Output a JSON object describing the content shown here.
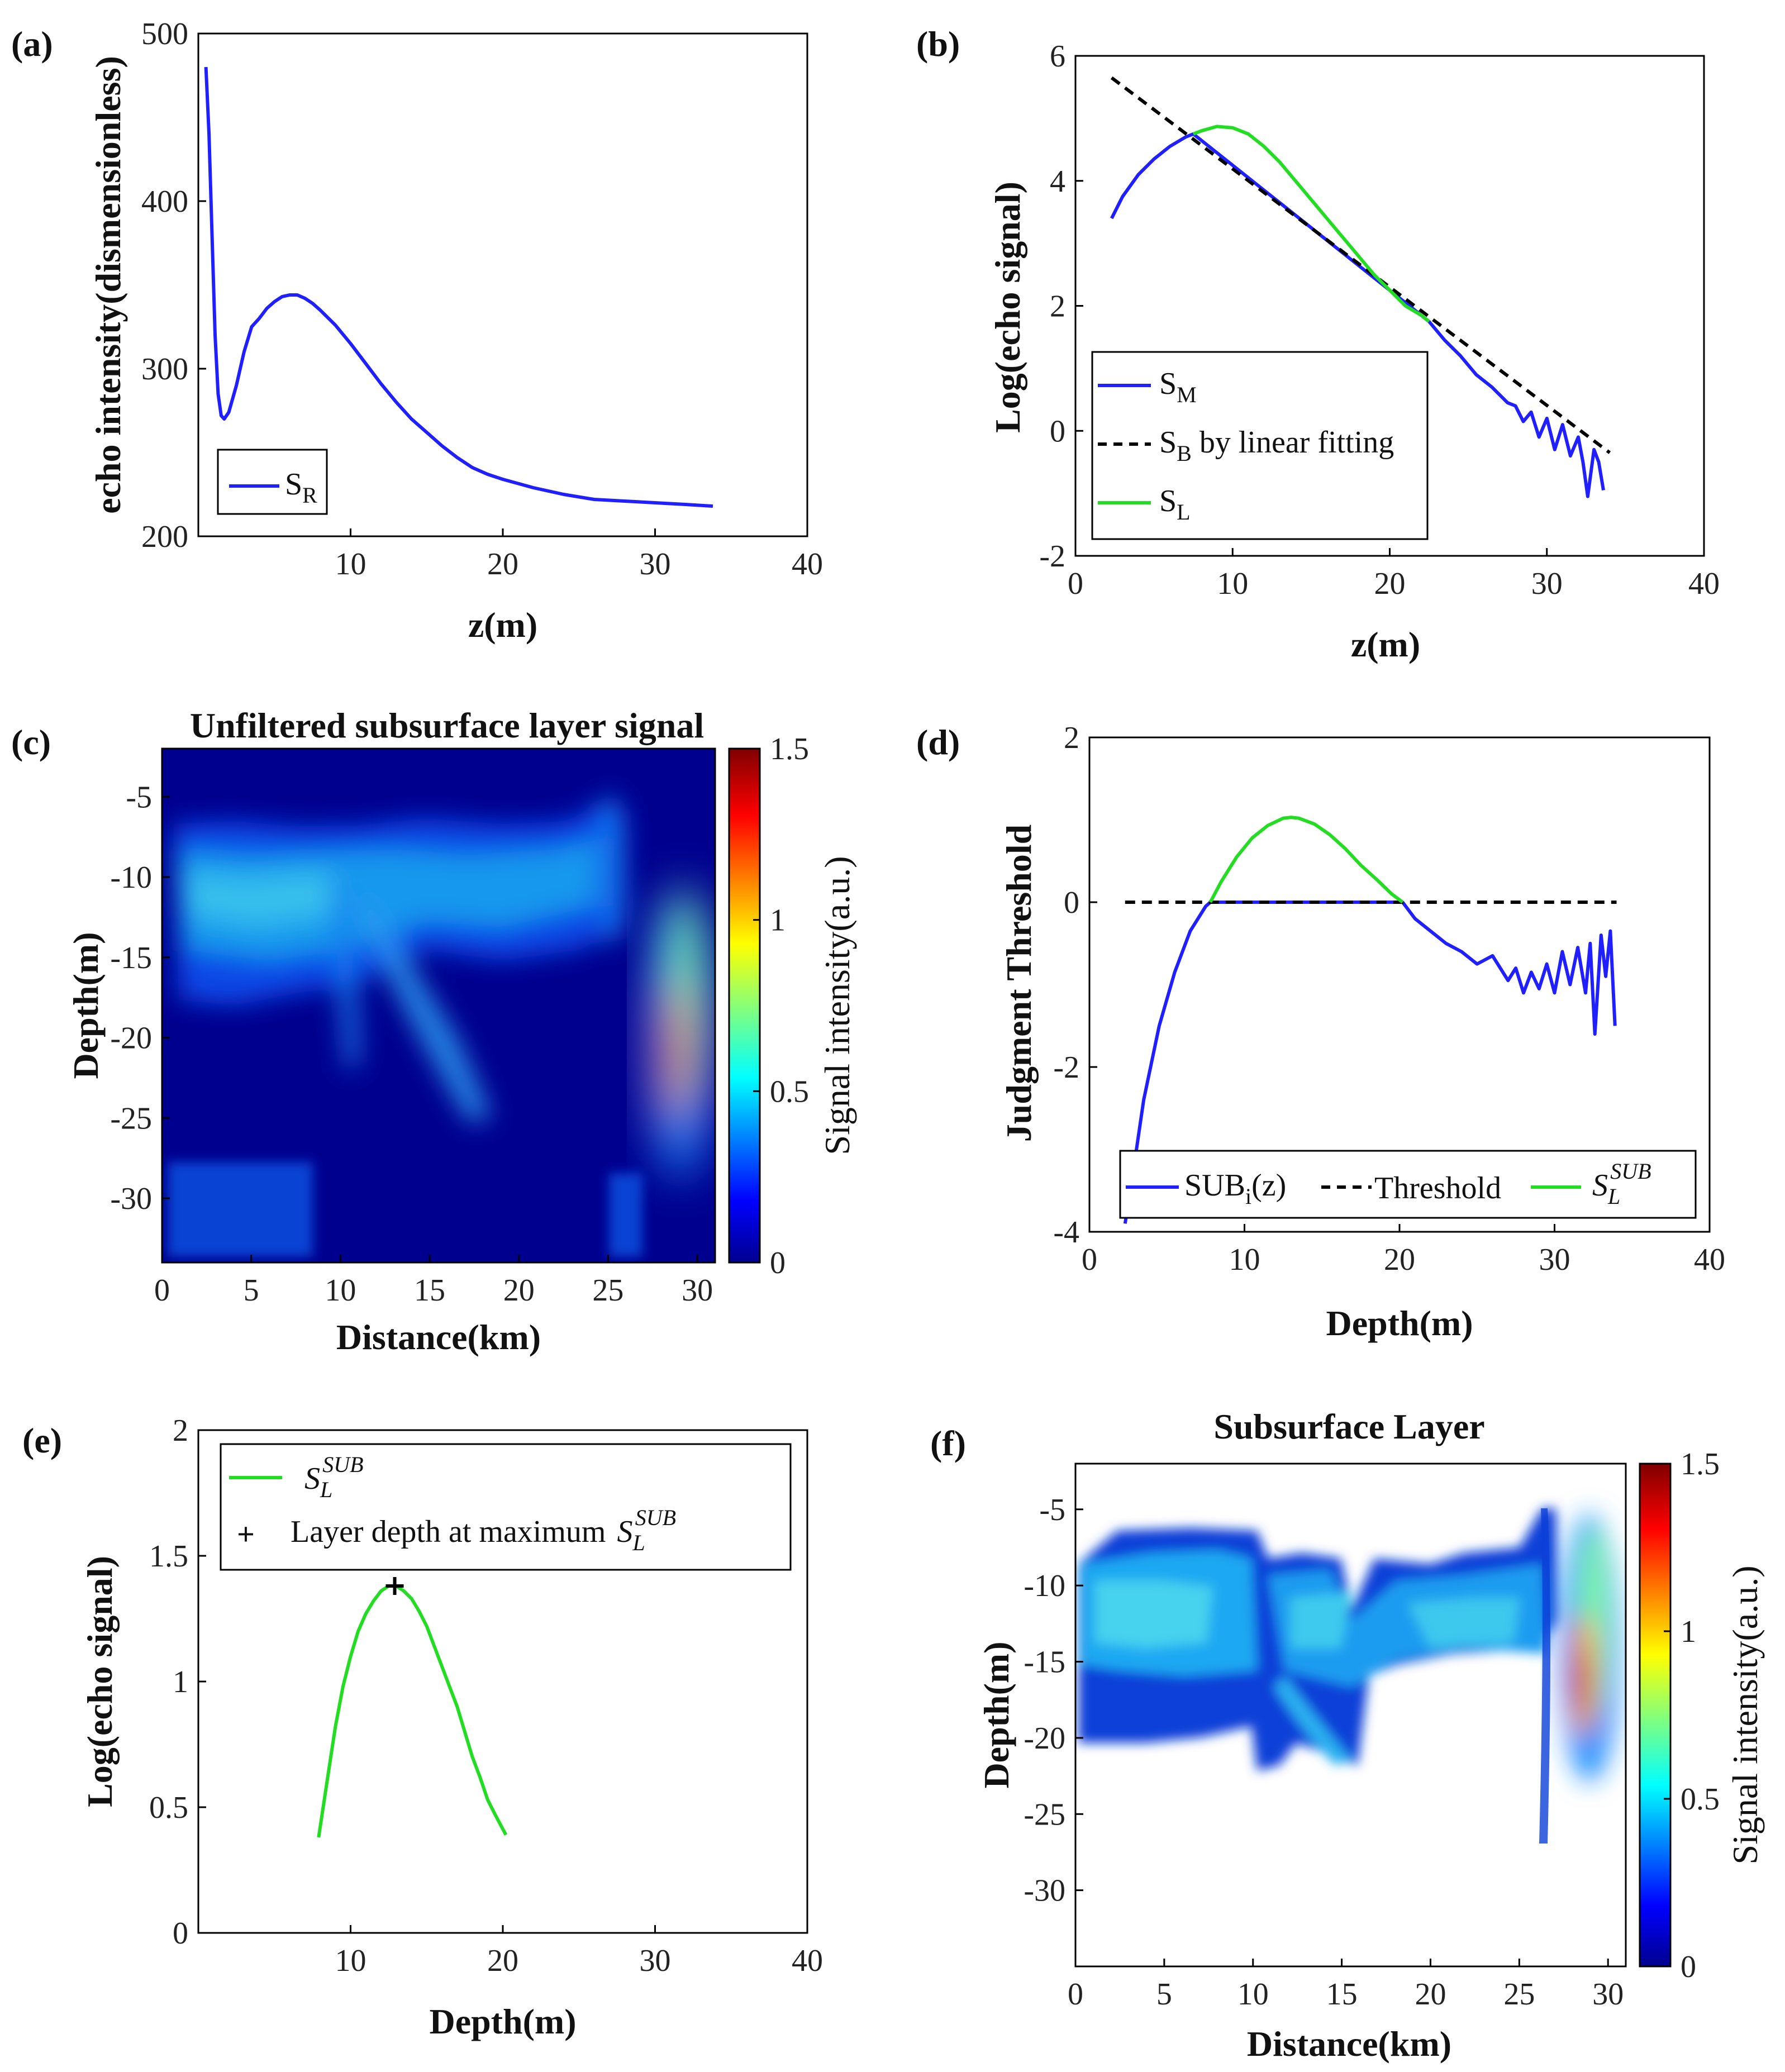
{
  "chart_data": [
    {
      "panel": "(a)",
      "type": "line",
      "title": "",
      "xlabel": "z(m)",
      "ylabel": "echo intensity(dismensionless)",
      "xlim": [
        0,
        40
      ],
      "ylim": [
        200,
        500
      ],
      "xticks": [
        "10",
        "20",
        "30",
        "40"
      ],
      "yticks": [
        "200",
        "300",
        "400",
        "500"
      ],
      "legend": "bottom-left",
      "series": [
        {
          "name": "S",
          "sub": "R",
          "color": "#1f1fff",
          "x": [
            0.5,
            0.7,
            0.9,
            1.1,
            1.3,
            1.5,
            1.7,
            2.0,
            2.5,
            3.0,
            3.5,
            4.0,
            4.5,
            5.0,
            5.5,
            6.0,
            6.5,
            7.0,
            7.5,
            8.0,
            9.0,
            10.0,
            11.0,
            12.0,
            13.0,
            14.0,
            15.0,
            16.0,
            17.0,
            18.0,
            19.0,
            20.0,
            22.0,
            24.0,
            26.0,
            28.0,
            30.0,
            32.0,
            33.8
          ],
          "y": [
            480,
            440,
            380,
            320,
            285,
            272,
            270,
            274,
            290,
            310,
            325,
            330,
            336,
            340,
            343,
            344,
            344,
            342,
            339,
            335,
            326,
            315,
            303,
            291,
            280,
            270,
            262,
            254,
            247,
            241,
            237,
            234,
            229,
            225,
            222,
            221,
            220,
            219,
            218
          ]
        }
      ]
    },
    {
      "panel": "(b)",
      "type": "line",
      "title": "",
      "xlabel": "z(m)",
      "ylabel": "Log(echo signal)",
      "xlim": [
        0,
        40
      ],
      "ylim": [
        -2,
        6
      ],
      "xticks": [
        "0",
        "10",
        "20",
        "30",
        "40"
      ],
      "yticks": [
        "-2",
        "0",
        "2",
        "4",
        "6"
      ],
      "legend": "bottom-left",
      "series": [
        {
          "name": "S",
          "sub": "M",
          "color": "#1f1fff",
          "x": [
            2.3,
            3.0,
            4.0,
            5.0,
            6.0,
            7.0,
            7.5,
            22.5,
            23.5,
            24.5,
            25.5,
            26.5,
            27.5,
            28.0,
            28.5,
            29.0,
            29.5,
            30.0,
            30.5,
            31.0,
            31.5,
            32.0,
            32.3,
            32.6,
            33.0,
            33.3,
            33.6
          ],
          "y": [
            3.4,
            3.75,
            4.1,
            4.35,
            4.55,
            4.7,
            4.75,
            1.75,
            1.45,
            1.2,
            0.9,
            0.7,
            0.45,
            0.4,
            0.15,
            0.3,
            -0.1,
            0.2,
            -0.3,
            0.1,
            -0.4,
            -0.1,
            -0.5,
            -1.05,
            -0.3,
            -0.5,
            -0.95
          ]
        },
        {
          "name": "S",
          "sub": "B",
          "suffix": " by linear fitting",
          "color": "#000000",
          "dashed": true,
          "x": [
            2.3,
            34.0
          ],
          "y": [
            5.65,
            -0.35
          ]
        },
        {
          "name": "S",
          "sub": "L",
          "color": "#22dd22",
          "x": [
            7.5,
            8.0,
            9.0,
            10.0,
            11.0,
            12.0,
            13.0,
            14.0,
            15.0,
            16.0,
            17.0,
            18.0,
            19.0,
            20.0,
            21.0,
            22.0,
            22.5
          ],
          "y": [
            4.75,
            4.8,
            4.87,
            4.85,
            4.75,
            4.55,
            4.3,
            4.0,
            3.7,
            3.4,
            3.1,
            2.8,
            2.5,
            2.25,
            2.0,
            1.85,
            1.75
          ]
        }
      ]
    },
    {
      "panel": "(c)",
      "type": "heatmap",
      "title": "Unfiltered subsurface layer signal",
      "xlabel": "Distance(km)",
      "ylabel": "Depth(m)",
      "xlim": [
        0,
        31
      ],
      "ylim": [
        -34,
        -2
      ],
      "xticks": [
        "0",
        "5",
        "10",
        "15",
        "20",
        "25",
        "30"
      ],
      "yticks": [
        "-5",
        "-10",
        "-15",
        "-20",
        "-25",
        "-30"
      ],
      "colorbar": {
        "label": "Signal intensity(a.u.)",
        "range": [
          0,
          1.5
        ],
        "ticks": [
          "0",
          "0.5",
          "1",
          "1.5"
        ]
      }
    },
    {
      "panel": "(d)",
      "type": "line",
      "title": "",
      "xlabel": "Depth(m)",
      "ylabel": "Judgment Threshold",
      "xlim": [
        0,
        40
      ],
      "ylim": [
        -4,
        2
      ],
      "xticks": [
        "0",
        "10",
        "20",
        "30",
        "40"
      ],
      "yticks": [
        "-4",
        "-2",
        "0",
        "2"
      ],
      "legend": "bottom",
      "series": [
        {
          "name": "SUB",
          "sub": "i",
          "suffix": "(z)",
          "color": "#1f1fff",
          "x": [
            2.3,
            2.8,
            3.5,
            4.5,
            5.5,
            6.5,
            7.5,
            7.8,
            20.2,
            21.0,
            22.0,
            23.0,
            24.0,
            25.0,
            26.0,
            27.0,
            27.5,
            28.0,
            28.5,
            29.0,
            29.5,
            30.0,
            30.5,
            31.0,
            31.5,
            32.0,
            32.3,
            32.6,
            33.0,
            33.3,
            33.6,
            33.9
          ],
          "y": [
            -3.9,
            -3.3,
            -2.4,
            -1.5,
            -0.85,
            -0.35,
            -0.05,
            0.0,
            0.0,
            -0.2,
            -0.35,
            -0.5,
            -0.6,
            -0.75,
            -0.65,
            -0.95,
            -0.8,
            -1.1,
            -0.85,
            -1.05,
            -0.75,
            -1.1,
            -0.6,
            -1.0,
            -0.55,
            -1.1,
            -0.5,
            -1.6,
            -0.4,
            -0.9,
            -0.35,
            -1.5
          ]
        },
        {
          "name": "Threshold",
          "color": "#000000",
          "dashed": true,
          "x": [
            2.3,
            34.0
          ],
          "y": [
            0,
            0
          ]
        },
        {
          "name": "S",
          "sub": "L",
          "sup": "SUB",
          "italic": true,
          "color": "#22dd22",
          "x": [
            7.8,
            8.5,
            9.5,
            10.5,
            11.5,
            12.5,
            13.0,
            13.5,
            14.5,
            15.5,
            16.5,
            17.5,
            18.5,
            19.5,
            20.2
          ],
          "y": [
            0.0,
            0.25,
            0.55,
            0.78,
            0.93,
            1.02,
            1.03,
            1.02,
            0.95,
            0.82,
            0.65,
            0.45,
            0.28,
            0.1,
            0.0
          ]
        }
      ]
    },
    {
      "panel": "(e)",
      "type": "line",
      "title": "",
      "xlabel": "Depth(m)",
      "ylabel": "Log(echo signal)",
      "xlim": [
        0,
        40
      ],
      "ylim": [
        0,
        2
      ],
      "xticks": [
        "10",
        "20",
        "30",
        "40"
      ],
      "yticks": [
        "0",
        "0.5",
        "1",
        "1.5",
        "2"
      ],
      "legend": "top-left",
      "series": [
        {
          "name": "S",
          "sub": "L",
          "sup": "SUB",
          "italic": true,
          "color": "#22dd22",
          "x": [
            7.9,
            8.5,
            9.0,
            9.5,
            10.0,
            10.5,
            11.0,
            11.5,
            12.0,
            12.5,
            13.0,
            13.5,
            14.0,
            14.5,
            15.0,
            15.5,
            16.0,
            16.5,
            17.0,
            17.5,
            18.0,
            18.5,
            19.0,
            19.5,
            20.2
          ],
          "y": [
            0.38,
            0.62,
            0.82,
            0.98,
            1.1,
            1.2,
            1.27,
            1.32,
            1.36,
            1.38,
            1.38,
            1.36,
            1.33,
            1.28,
            1.22,
            1.14,
            1.06,
            0.98,
            0.9,
            0.8,
            0.7,
            0.62,
            0.53,
            0.47,
            0.39
          ]
        },
        {
          "name": "Layer depth at maximum",
          "marker": "+",
          "sym": "S",
          "sub": "L",
          "sup": "SUB",
          "color": "#000000",
          "x": [
            12.9
          ],
          "y": [
            1.38
          ]
        }
      ]
    },
    {
      "panel": "(f)",
      "type": "heatmap",
      "title": "Subsurface Layer",
      "xlabel": "Distance(km)",
      "ylabel": "Depth(m)",
      "xlim": [
        0,
        31
      ],
      "ylim": [
        -35,
        -2
      ],
      "xticks": [
        "0",
        "5",
        "10",
        "15",
        "20",
        "25",
        "30"
      ],
      "yticks": [
        "-5",
        "-10",
        "-15",
        "-20",
        "-25",
        "-30"
      ],
      "colorbar": {
        "label": "Signal intensity(a.u.)",
        "range": [
          0,
          1.5
        ],
        "ticks": [
          "0",
          "0.5",
          "1",
          "1.5"
        ]
      }
    }
  ]
}
